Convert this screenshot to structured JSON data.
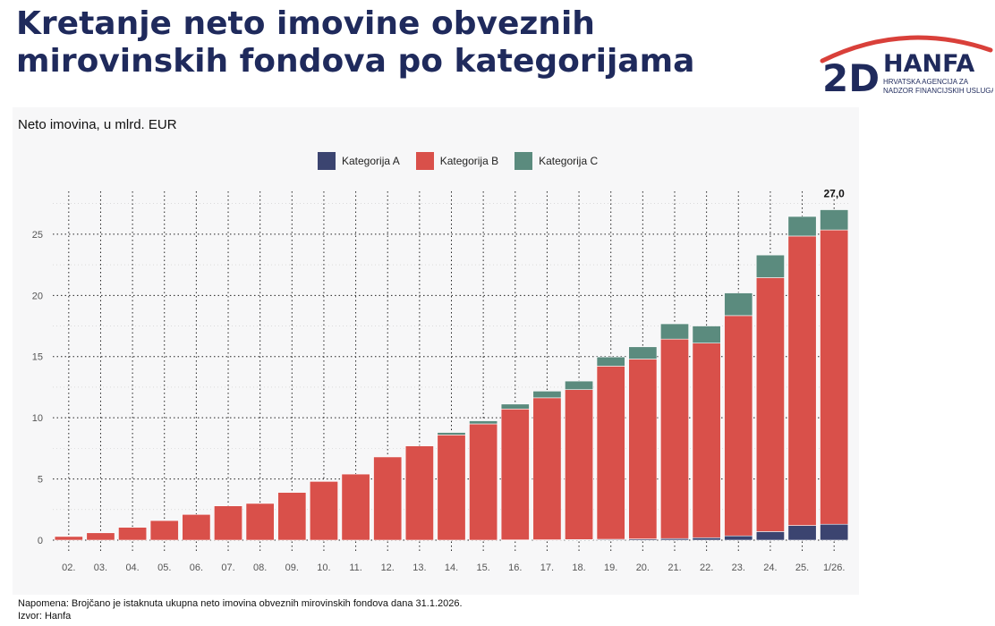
{
  "page": {
    "title_line1": "Kretanje neto imovine obveznih",
    "title_line2": "mirovinskih fondova po kategorijama",
    "logo": {
      "mark": "2D",
      "name": "HANFA",
      "tagline1": "HRVATSKA AGENCIJA ZA",
      "tagline2": "NADZOR FINANCIJSKIH USLUGA",
      "colors": {
        "navy": "#1f2a5c",
        "red": "#d9403a"
      }
    },
    "note": "Napomena: Brojčano je istaknuta ukupna neto imovina obveznih mirovinskih fondova dana 31.1.2026.",
    "source": "Izvor: Hanfa"
  },
  "chart_data": {
    "type": "bar",
    "stacked": true,
    "title": "Neto imovina, u mlrd. EUR",
    "xlabel": "",
    "ylabel": "",
    "ylim": [
      0,
      28.5
    ],
    "yticks": [
      0,
      5,
      10,
      15,
      20,
      25
    ],
    "grid": "dotted",
    "legend_position": "top",
    "categories": [
      "02.",
      "03.",
      "04.",
      "05.",
      "06.",
      "07.",
      "08.",
      "09.",
      "10.",
      "11.",
      "12.",
      "13.",
      "14.",
      "15.",
      "16.",
      "17.",
      "18.",
      "19.",
      "20.",
      "21.",
      "22.",
      "23.",
      "24.",
      "25.",
      "1/26."
    ],
    "series": [
      {
        "name": "Kategorija A",
        "color": "#3b4470",
        "values": [
          0,
          0,
          0,
          0,
          0,
          0,
          0,
          0,
          0,
          0,
          0,
          0,
          0,
          0,
          0.02,
          0.03,
          0.05,
          0.07,
          0.1,
          0.13,
          0.2,
          0.35,
          0.7,
          1.2,
          1.3
        ]
      },
      {
        "name": "Kategorija B",
        "color": "#d9504a",
        "values": [
          0.3,
          0.6,
          1.05,
          1.6,
          2.1,
          2.8,
          3.0,
          3.9,
          4.8,
          5.4,
          6.8,
          7.7,
          8.6,
          9.5,
          10.7,
          11.6,
          12.25,
          14.15,
          14.7,
          16.3,
          15.9,
          18.0,
          20.75,
          23.65,
          24.05
        ]
      },
      {
        "name": "Kategorija C",
        "color": "#5b8b7e",
        "values": [
          0,
          0,
          0,
          0,
          0,
          0,
          0,
          0,
          0,
          0,
          0,
          0,
          0.2,
          0.25,
          0.4,
          0.55,
          0.7,
          0.75,
          1.0,
          1.25,
          1.4,
          1.85,
          1.85,
          1.6,
          1.65
        ]
      }
    ],
    "annotations": [
      {
        "category": "1/26.",
        "text": "27,0"
      }
    ]
  }
}
